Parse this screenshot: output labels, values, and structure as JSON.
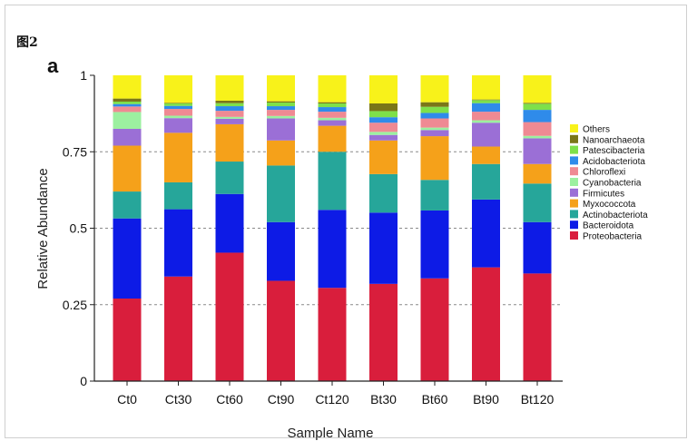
{
  "figure_label": "图2",
  "panel_label": "a",
  "chart_data": {
    "type": "bar",
    "stacked": true,
    "categories": [
      "Ct0",
      "Ct30",
      "Ct60",
      "Ct90",
      "Ct120",
      "Bt30",
      "Bt60",
      "Bt90",
      "Bt120"
    ],
    "xlabel": "Sample Name",
    "ylabel": "Relative Abundance",
    "ylim": [
      0,
      1
    ],
    "yticks": [
      "0",
      "0.25",
      "0.5",
      "0.75",
      "1"
    ],
    "ytick_values": [
      0,
      0.25,
      0.5,
      0.75,
      1
    ],
    "grid": "dashed horizontal at 0.25, 0.5, 0.75",
    "legend_position": "right",
    "series": [
      {
        "name": "Proteobacteria",
        "color": "#d91e3c",
        "values": [
          0.27,
          0.342,
          0.42,
          0.328,
          0.305,
          0.318,
          0.336,
          0.372,
          0.352
        ]
      },
      {
        "name": "Bacteroidota",
        "color": "#0d1be6",
        "values": [
          0.262,
          0.22,
          0.192,
          0.192,
          0.255,
          0.233,
          0.222,
          0.222,
          0.168
        ]
      },
      {
        "name": "Actinobacteriota",
        "color": "#26a69a",
        "values": [
          0.088,
          0.088,
          0.106,
          0.185,
          0.19,
          0.126,
          0.1,
          0.116,
          0.126
        ]
      },
      {
        "name": "Myxococcota",
        "color": "#f5a11a",
        "values": [
          0.15,
          0.162,
          0.122,
          0.082,
          0.085,
          0.11,
          0.143,
          0.057,
          0.064
        ]
      },
      {
        "name": "Firmicutes",
        "color": "#9b6fd6",
        "values": [
          0.055,
          0.048,
          0.018,
          0.072,
          0.018,
          0.018,
          0.02,
          0.078,
          0.084
        ]
      },
      {
        "name": "Cyanobacteria",
        "color": "#9cf0a0",
        "values": [
          0.055,
          0.008,
          0.006,
          0.008,
          0.008,
          0.01,
          0.008,
          0.008,
          0.008
        ]
      },
      {
        "name": "Chloroflexi",
        "color": "#ef8a93",
        "values": [
          0.018,
          0.022,
          0.02,
          0.02,
          0.02,
          0.03,
          0.03,
          0.028,
          0.045
        ]
      },
      {
        "name": "Acidobacteriota",
        "color": "#2f8bea",
        "values": [
          0.008,
          0.01,
          0.015,
          0.012,
          0.015,
          0.018,
          0.018,
          0.028,
          0.04
        ]
      },
      {
        "name": "Patescibacteria",
        "color": "#7ee04a",
        "values": [
          0.008,
          0.008,
          0.01,
          0.012,
          0.012,
          0.02,
          0.02,
          0.01,
          0.02
        ]
      },
      {
        "name": "Nanoarchaeota",
        "color": "#7a7618",
        "values": [
          0.01,
          0.002,
          0.008,
          0.004,
          0.004,
          0.025,
          0.015,
          0.002,
          0.003
        ]
      },
      {
        "name": "Others",
        "color": "#f8f21a",
        "values": [
          0.076,
          0.09,
          0.083,
          0.085,
          0.088,
          0.092,
          0.088,
          0.079,
          0.09
        ]
      }
    ]
  }
}
